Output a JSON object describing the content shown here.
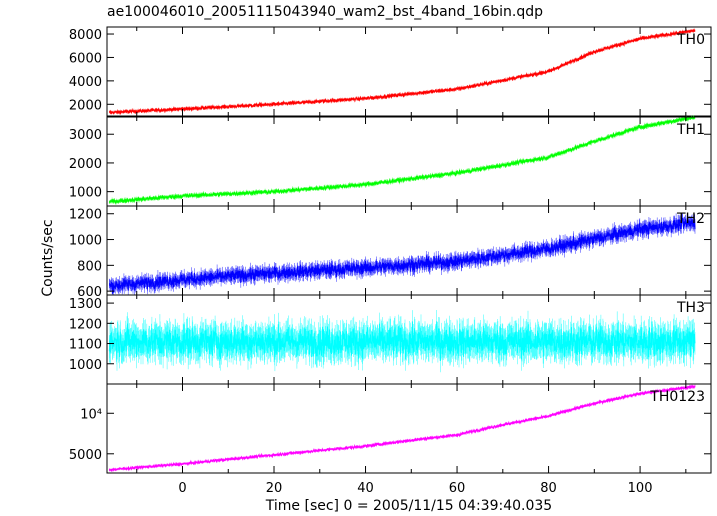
{
  "title": "ae100046010_20051115043940_wam2_bst_4band_16bin.qdp",
  "xlabel": "Time [sec] 0 = 2005/11/15 04:39:40.035",
  "ylabel": "Counts/sec",
  "chart_data": {
    "type": "line",
    "title": "ae100046010_20051115043940_wam2_bst_4band_16bin.qdp",
    "xlabel": "Time [sec] 0 = 2005/11/15 04:39:40.035",
    "ylabel": "Counts/sec",
    "xlim": [
      -16.5,
      115.5
    ],
    "x_ticks": [
      0,
      20,
      40,
      60,
      80,
      100
    ],
    "x_tick_labels": [
      "0",
      "20",
      "40",
      "60",
      "80",
      "100"
    ],
    "x_start": -16,
    "x_end": 112,
    "panels": [
      {
        "name": "TH0",
        "color": "#ff0000",
        "log": false,
        "ylim": [
          1000,
          8600
        ],
        "y_ticks": [
          2000,
          4000,
          6000,
          8000
        ],
        "y_tick_labels": [
          "2000",
          "4000",
          "6000",
          "8000"
        ],
        "profile_x": [
          -16,
          0,
          20,
          40,
          60,
          80,
          90,
          100,
          112
        ],
        "profile_y": [
          1300,
          1600,
          2000,
          2500,
          3300,
          4800,
          6500,
          7600,
          8300
        ],
        "noise": 120
      },
      {
        "name": "TH1",
        "color": "#00ff00",
        "log": false,
        "ylim": [
          500,
          3600
        ],
        "y_ticks": [
          1000,
          2000,
          3000
        ],
        "y_tick_labels": [
          "1000",
          "2000",
          "3000"
        ],
        "profile_x": [
          -16,
          0,
          20,
          40,
          60,
          80,
          90,
          100,
          112
        ],
        "profile_y": [
          650,
          850,
          1000,
          1250,
          1650,
          2200,
          2750,
          3250,
          3600
        ],
        "noise": 60
      },
      {
        "name": "TH2",
        "color": "#0000ff",
        "log": false,
        "ylim": [
          570,
          1260
        ],
        "y_ticks": [
          600,
          800,
          1000,
          1200
        ],
        "y_tick_labels": [
          "600",
          "800",
          "1000",
          "1200"
        ],
        "profile_x": [
          -16,
          0,
          20,
          40,
          60,
          80,
          100,
          112
        ],
        "profile_y": [
          640,
          690,
          740,
          780,
          830,
          930,
          1080,
          1130
        ],
        "noise": 45
      },
      {
        "name": "TH3",
        "color": "#00ffff",
        "log": false,
        "ylim": [
          900,
          1340
        ],
        "y_ticks": [
          1000,
          1100,
          1200,
          1300
        ],
        "y_tick_labels": [
          "1000",
          "1100",
          "1200",
          "1300"
        ],
        "profile_x": [
          -16,
          112
        ],
        "profile_y": [
          1110,
          1110
        ],
        "noise": 70
      },
      {
        "name": "TH0123",
        "color": "#ff00ff",
        "log": true,
        "ylim": [
          3600,
          16500
        ],
        "y_ticks": [
          5000,
          10000
        ],
        "y_tick_labels": [
          "5000",
          "10⁴"
        ],
        "profile_x": [
          -16,
          0,
          20,
          40,
          60,
          80,
          90,
          100,
          112
        ],
        "profile_y": [
          3800,
          4200,
          4900,
          5700,
          6900,
          9500,
          11800,
          14000,
          15800
        ],
        "noise": 0.02
      }
    ]
  }
}
